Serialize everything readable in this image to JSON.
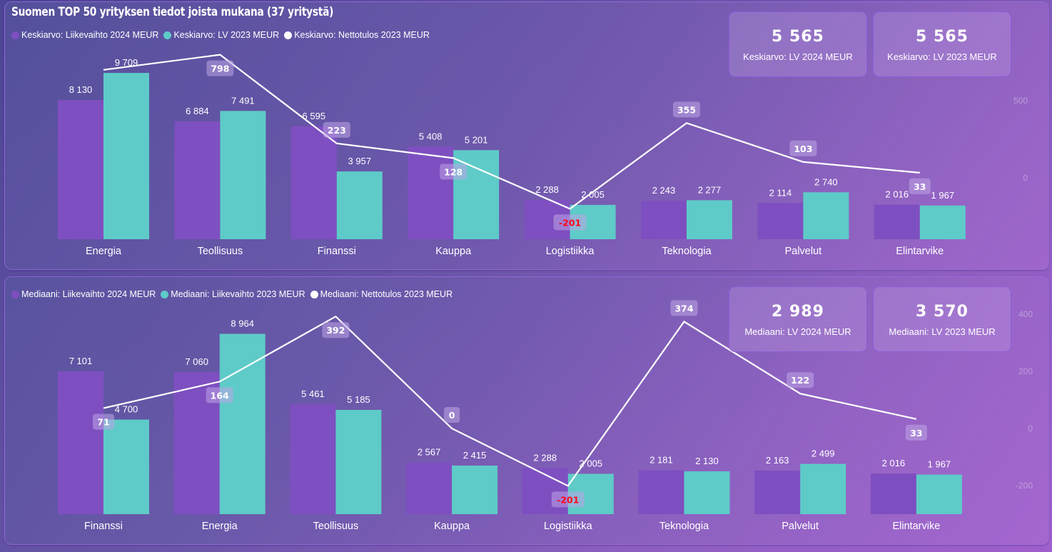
{
  "title": "Suomen TOP 50 yrityksen tiedot joista mukana (37 yritystä)",
  "colors": {
    "series_2024": "#7e4fc0",
    "series_2023": "#5ecbc8",
    "series_net": "#ffffff",
    "negative_label": "#ff0a1a",
    "label_box": "rgba(190,165,230,0.55)"
  },
  "kpis_top": [
    {
      "value": "5 565",
      "label": "Keskiarvo: LV 2024 MEUR"
    },
    {
      "value": "5 565",
      "label": "Keskiarvo: LV 2023 MEUR"
    }
  ],
  "kpis_bottom": [
    {
      "value": "2 989",
      "label": "Mediaani: LV 2024 MEUR"
    },
    {
      "value": "3 570",
      "label": "Mediaani: LV 2023 MEUR"
    }
  ],
  "chart_data": [
    {
      "type": "bar",
      "combo": "clustered-bar-with-line",
      "title": "Suomen TOP 50 yrityksen tiedot joista mukana (37 yritystä)",
      "legend_position": "top-left",
      "legend": [
        "Keskiarvo: Liikevaihto 2024 MEUR",
        "Keskiarvo: LV 2023 MEUR",
        "Keskiarvo: Nettotulos 2023 MEUR"
      ],
      "categories": [
        "Energia",
        "Teollisuus",
        "Finanssi",
        "Kauppa",
        "Logistiikka",
        "Teknologia",
        "Palvelut",
        "Elintarvike"
      ],
      "series": [
        {
          "name": "Keskiarvo: Liikevaihto 2024 MEUR",
          "type": "bar",
          "axis": "left",
          "values": [
            8130,
            6884,
            6595,
            5408,
            2288,
            2243,
            2114,
            2016
          ],
          "labels": [
            "8 130",
            "6 884",
            "6 595",
            "5 408",
            "2 288",
            "2 243",
            "2 114",
            "2 016"
          ]
        },
        {
          "name": "Keskiarvo: LV 2023 MEUR",
          "type": "bar",
          "axis": "left",
          "values": [
            9709,
            7491,
            3957,
            5201,
            2005,
            2277,
            2740,
            1967
          ],
          "labels": [
            "9 709",
            "7 491",
            "3 957",
            "5 201",
            "2 005",
            "2 277",
            "2 740",
            "1 967"
          ]
        },
        {
          "name": "Keskiarvo: Nettotulos 2023 MEUR",
          "type": "line",
          "axis": "right",
          "values": [
            700,
            798,
            223,
            128,
            -201,
            355,
            103,
            33
          ],
          "labels": [
            "",
            "798",
            "223",
            "128",
            "-201",
            "355",
            "103",
            "33"
          ]
        }
      ],
      "left_ylim": [
        0,
        11000
      ],
      "right_axis_ticks": [
        "500",
        "0"
      ],
      "right_axis_tick_values": [
        500,
        0
      ],
      "right_ylim": [
        -400,
        800
      ],
      "grid": false
    },
    {
      "type": "bar",
      "combo": "clustered-bar-with-line",
      "legend_position": "top-left",
      "legend": [
        "Mediaani: Liikevaihto 2024 MEUR",
        "Mediaani: Liikevaihto 2023 MEUR",
        "Mediaani: Nettotulos 2023 MEUR"
      ],
      "categories": [
        "Finanssi",
        "Energia",
        "Teollisuus",
        "Kauppa",
        "Logistiikka",
        "Teknologia",
        "Palvelut",
        "Elintarvike"
      ],
      "series": [
        {
          "name": "Mediaani: Liikevaihto 2024 MEUR",
          "type": "bar",
          "axis": "left",
          "values": [
            7101,
            7060,
            5461,
            2567,
            2288,
            2181,
            2163,
            2016
          ],
          "labels": [
            "7 101",
            "7 060",
            "5 461",
            "2 567",
            "2 288",
            "2 181",
            "2 163",
            "2 016"
          ]
        },
        {
          "name": "Mediaani: Liikevaihto 2023 MEUR",
          "type": "bar",
          "axis": "left",
          "values": [
            4700,
            8964,
            5185,
            2415,
            2005,
            2130,
            2499,
            1967
          ],
          "labels": [
            "4 700",
            "8 964",
            "5 185",
            "2 415",
            "2 005",
            "2 130",
            "2 499",
            "1 967"
          ]
        },
        {
          "name": "Mediaani: Nettotulos 2023 MEUR",
          "type": "line",
          "axis": "right",
          "values": [
            71,
            164,
            392,
            0,
            -201,
            374,
            122,
            33
          ],
          "labels": [
            "71",
            "164",
            "392",
            "0",
            "-201",
            "374",
            "122",
            "33"
          ]
        }
      ],
      "left_ylim": [
        0,
        10500
      ],
      "right_axis_ticks": [
        "400",
        "200",
        "0",
        "-200"
      ],
      "right_axis_tick_values": [
        400,
        200,
        0,
        -200
      ],
      "right_ylim": [
        -300,
        420
      ],
      "grid": false
    }
  ]
}
